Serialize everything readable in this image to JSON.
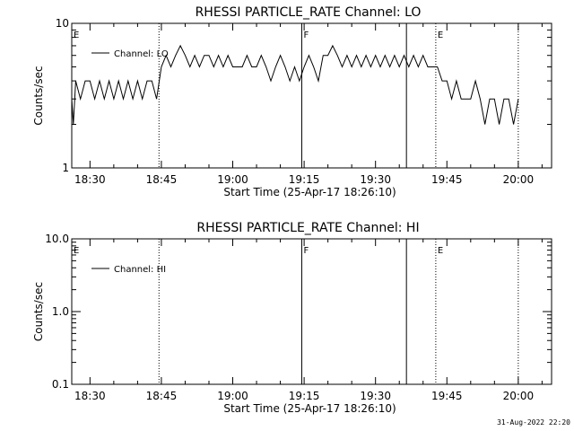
{
  "chart_data": [
    {
      "type": "line",
      "title": "RHESSI PARTICLE_RATE Channel: LO",
      "xlabel": "Start Time (25-Apr-17 18:26:10)",
      "ylabel": "Counts/sec",
      "yscale": "log",
      "ylim": [
        1,
        10
      ],
      "y_tick_labels": [
        "1",
        "10"
      ],
      "y_ticks": [
        1,
        10
      ],
      "xlim": [
        "18:26:10",
        "20:07:00"
      ],
      "x_tick_labels": [
        "18:30",
        "18:45",
        "19:00",
        "19:15",
        "19:30",
        "19:45",
        "20:00"
      ],
      "x_ticks": [
        "18:30",
        "18:45",
        "19:00",
        "19:15",
        "19:30",
        "19:45",
        "20:00"
      ],
      "legend": "top-left",
      "grid": false,
      "series": [
        {
          "name": "Channel: LO",
          "color": "#000000",
          "points": [
            [
              "18:26:10",
              3
            ],
            [
              "18:26:30",
              2
            ],
            [
              "18:27:00",
              4
            ],
            [
              "18:28:00",
              3
            ],
            [
              "18:29:00",
              4
            ],
            [
              "18:30:00",
              4
            ],
            [
              "18:31:00",
              3
            ],
            [
              "18:32:00",
              4
            ],
            [
              "18:33:00",
              3
            ],
            [
              "18:34:00",
              4
            ],
            [
              "18:35:00",
              3
            ],
            [
              "18:36:00",
              4
            ],
            [
              "18:37:00",
              3
            ],
            [
              "18:38:00",
              4
            ],
            [
              "18:39:00",
              3
            ],
            [
              "18:40:00",
              4
            ],
            [
              "18:41:00",
              3
            ],
            [
              "18:42:00",
              4
            ],
            [
              "18:43:00",
              4
            ],
            [
              "18:44:00",
              3
            ],
            [
              "18:45:00",
              5
            ],
            [
              "18:46:00",
              6
            ],
            [
              "18:47:00",
              5
            ],
            [
              "18:48:00",
              6
            ],
            [
              "18:49:00",
              7
            ],
            [
              "18:50:00",
              6
            ],
            [
              "18:51:00",
              5
            ],
            [
              "18:52:00",
              6
            ],
            [
              "18:53:00",
              5
            ],
            [
              "18:54:00",
              6
            ],
            [
              "18:55:00",
              6
            ],
            [
              "18:56:00",
              5
            ],
            [
              "18:57:00",
              6
            ],
            [
              "18:58:00",
              5
            ],
            [
              "18:59:00",
              6
            ],
            [
              "19:00:00",
              5
            ],
            [
              "19:01:00",
              5
            ],
            [
              "19:02:00",
              5
            ],
            [
              "19:03:00",
              6
            ],
            [
              "19:04:00",
              5
            ],
            [
              "19:05:00",
              5
            ],
            [
              "19:06:00",
              6
            ],
            [
              "19:07:00",
              5
            ],
            [
              "19:08:00",
              4
            ],
            [
              "19:09:00",
              5
            ],
            [
              "19:10:00",
              6
            ],
            [
              "19:11:00",
              5
            ],
            [
              "19:12:00",
              4
            ],
            [
              "19:13:00",
              5
            ],
            [
              "19:14:00",
              4
            ],
            [
              "19:15:00",
              5
            ],
            [
              "19:16:00",
              6
            ],
            [
              "19:17:00",
              5
            ],
            [
              "19:18:00",
              4
            ],
            [
              "19:19:00",
              6
            ],
            [
              "19:20:00",
              6
            ],
            [
              "19:21:00",
              7
            ],
            [
              "19:22:00",
              6
            ],
            [
              "19:23:00",
              5
            ],
            [
              "19:24:00",
              6
            ],
            [
              "19:25:00",
              5
            ],
            [
              "19:26:00",
              6
            ],
            [
              "19:27:00",
              5
            ],
            [
              "19:28:00",
              6
            ],
            [
              "19:29:00",
              5
            ],
            [
              "19:30:00",
              6
            ],
            [
              "19:31:00",
              5
            ],
            [
              "19:32:00",
              6
            ],
            [
              "19:33:00",
              5
            ],
            [
              "19:34:00",
              6
            ],
            [
              "19:35:00",
              5
            ],
            [
              "19:36:00",
              6
            ],
            [
              "19:37:00",
              5
            ],
            [
              "19:38:00",
              6
            ],
            [
              "19:39:00",
              5
            ],
            [
              "19:40:00",
              6
            ],
            [
              "19:41:00",
              5
            ],
            [
              "19:42:00",
              5
            ],
            [
              "19:43:00",
              5
            ],
            [
              "19:44:00",
              4
            ],
            [
              "19:45:00",
              4
            ],
            [
              "19:46:00",
              3
            ],
            [
              "19:47:00",
              4
            ],
            [
              "19:48:00",
              3
            ],
            [
              "19:49:00",
              3
            ],
            [
              "19:50:00",
              3
            ],
            [
              "19:51:00",
              4
            ],
            [
              "19:52:00",
              3
            ],
            [
              "19:53:00",
              2
            ],
            [
              "19:54:00",
              3
            ],
            [
              "19:55:00",
              3
            ],
            [
              "19:56:00",
              2
            ],
            [
              "19:57:00",
              3
            ],
            [
              "19:58:00",
              3
            ],
            [
              "19:59:00",
              2
            ],
            [
              "20:00:00",
              3
            ]
          ]
        }
      ],
      "annotations": [
        {
          "label": "E",
          "time": "18:26:10"
        },
        {
          "label": "F",
          "time": "19:14:30"
        },
        {
          "label": "E",
          "time": "19:42:40"
        }
      ],
      "vlines_dotted": [
        "18:44:30",
        "19:42:40",
        "20:00:00"
      ],
      "vlines_solid": [
        "19:14:30",
        "19:36:30"
      ]
    },
    {
      "type": "line",
      "title": "RHESSI PARTICLE_RATE Channel: HI",
      "xlabel": "Start Time (25-Apr-17 18:26:10)",
      "ylabel": "Counts/sec",
      "yscale": "log",
      "ylim": [
        0.1,
        10
      ],
      "y_tick_labels": [
        "0.1",
        "1.0",
        "10.0"
      ],
      "y_ticks": [
        0.1,
        1,
        10
      ],
      "xlim": [
        "18:26:10",
        "20:07:00"
      ],
      "x_tick_labels": [
        "18:30",
        "18:45",
        "19:00",
        "19:15",
        "19:30",
        "19:45",
        "20:00"
      ],
      "x_ticks": [
        "18:30",
        "18:45",
        "19:00",
        "19:15",
        "19:30",
        "19:45",
        "20:00"
      ],
      "legend": "top-left",
      "grid": false,
      "series": [
        {
          "name": "Channel: HI",
          "color": "#000000",
          "points": []
        }
      ],
      "annotations": [
        {
          "label": "E",
          "time": "18:26:10"
        },
        {
          "label": "F",
          "time": "19:14:30"
        },
        {
          "label": "E",
          "time": "19:42:40"
        }
      ],
      "vlines_dotted": [
        "18:44:30",
        "19:42:40",
        "20:00:00"
      ],
      "vlines_solid": [
        "19:14:30",
        "19:36:30"
      ]
    }
  ],
  "footer": {
    "timestamp": "31-Aug-2022 22:20"
  }
}
